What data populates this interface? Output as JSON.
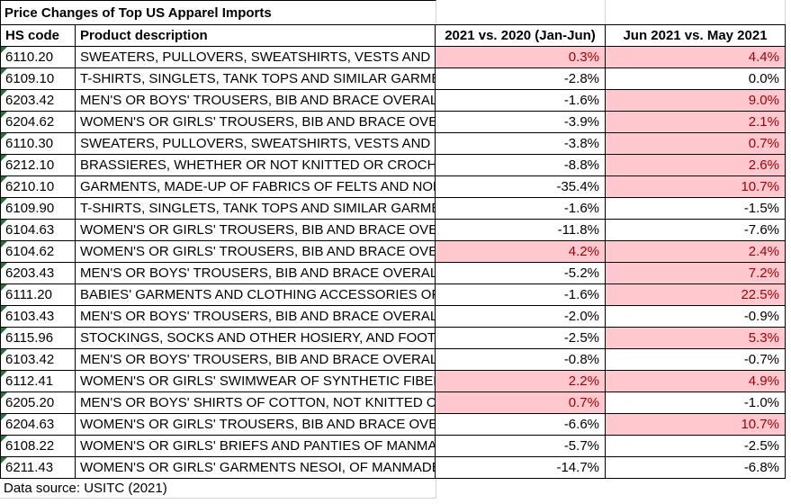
{
  "title": "Price Changes of Top US Apparel Imports",
  "footer": "Data source: USITC (2021)",
  "colors": {
    "highlight_fill": "#FFC7CE",
    "highlight_text": "#9C0006",
    "error_indicator_green": "#1E7145",
    "border": "#000000",
    "gridline": "#D4D4D4"
  },
  "table": {
    "columns": [
      "HS code",
      "Product description",
      "2021 vs. 2020 (Jan-Jun)",
      "Jun 2021 vs. May 2021"
    ],
    "rows": [
      {
        "hs": "6110.20",
        "desc": "SWEATERS, PULLOVERS, SWEATSHIRTS, VESTS AND SIMILAR ARTICLES",
        "yoy": "0.3%",
        "yoy_hl": true,
        "mom": "4.4%",
        "mom_hl": true
      },
      {
        "hs": "6109.10",
        "desc": "T-SHIRTS, SINGLETS, TANK TOPS AND SIMILAR GARMENTS",
        "yoy": "-2.8%",
        "yoy_hl": false,
        "mom": "0.0%",
        "mom_hl": false
      },
      {
        "hs": "6203.42",
        "desc": "MEN'S OR BOYS' TROUSERS, BIB AND BRACE OVERALLS",
        "yoy": "-1.6%",
        "yoy_hl": false,
        "mom": "9.0%",
        "mom_hl": true
      },
      {
        "hs": "6204.62",
        "desc": "WOMEN'S OR GIRLS' TROUSERS, BIB AND BRACE OVERALLS",
        "yoy": "-3.9%",
        "yoy_hl": false,
        "mom": "2.1%",
        "mom_hl": true
      },
      {
        "hs": "6110.30",
        "desc": "SWEATERS, PULLOVERS, SWEATSHIRTS, VESTS AND SIMILAR ARTICLES",
        "yoy": "-3.8%",
        "yoy_hl": false,
        "mom": "0.7%",
        "mom_hl": true
      },
      {
        "hs": "6212.10",
        "desc": "BRASSIERES, WHETHER OR NOT KNITTED OR CROCHETED",
        "yoy": "-8.8%",
        "yoy_hl": false,
        "mom": "2.6%",
        "mom_hl": true
      },
      {
        "hs": "6210.10",
        "desc": "GARMENTS, MADE-UP OF FABRICS OF FELTS AND NONWOVENS",
        "yoy": "-35.4%",
        "yoy_hl": false,
        "mom": "10.7%",
        "mom_hl": true
      },
      {
        "hs": "6109.90",
        "desc": "T-SHIRTS, SINGLETS, TANK TOPS AND SIMILAR GARMENTS",
        "yoy": "-1.6%",
        "yoy_hl": false,
        "mom": "-1.5%",
        "mom_hl": false
      },
      {
        "hs": "6104.63",
        "desc": "WOMEN'S OR GIRLS' TROUSERS, BIB AND BRACE OVERALLS",
        "yoy": "-11.8%",
        "yoy_hl": false,
        "mom": "-7.6%",
        "mom_hl": false
      },
      {
        "hs": "6104.62",
        "desc": "WOMEN'S OR GIRLS' TROUSERS, BIB AND BRACE OVERALLS",
        "yoy": "4.2%",
        "yoy_hl": true,
        "mom": "2.4%",
        "mom_hl": true
      },
      {
        "hs": "6203.43",
        "desc": "MEN'S OR BOYS' TROUSERS, BIB AND BRACE OVERALLS",
        "yoy": "-5.2%",
        "yoy_hl": false,
        "mom": "7.2%",
        "mom_hl": true
      },
      {
        "hs": "6111.20",
        "desc": "BABIES' GARMENTS AND CLOTHING ACCESSORIES OF COTTON",
        "yoy": "-1.6%",
        "yoy_hl": false,
        "mom": "22.5%",
        "mom_hl": true
      },
      {
        "hs": "6103.43",
        "desc": "MEN'S OR BOYS' TROUSERS, BIB AND BRACE OVERALLS",
        "yoy": "-2.0%",
        "yoy_hl": false,
        "mom": "-0.9%",
        "mom_hl": false
      },
      {
        "hs": "6115.96",
        "desc": "STOCKINGS, SOCKS AND OTHER HOSIERY, AND FOOTWEAR",
        "yoy": "-2.5%",
        "yoy_hl": false,
        "mom": "5.3%",
        "mom_hl": true
      },
      {
        "hs": "6103.42",
        "desc": "MEN'S OR BOYS' TROUSERS, BIB AND BRACE OVERALLS",
        "yoy": "-0.8%",
        "yoy_hl": false,
        "mom": "-0.7%",
        "mom_hl": false
      },
      {
        "hs": "6112.41",
        "desc": "WOMEN'S OR GIRLS' SWIMWEAR OF SYNTHETIC FIBERS",
        "yoy": "2.2%",
        "yoy_hl": true,
        "mom": "4.9%",
        "mom_hl": true
      },
      {
        "hs": "6205.20",
        "desc": "MEN'S OR BOYS' SHIRTS OF COTTON, NOT KNITTED OR CROCHETED",
        "yoy": "0.7%",
        "yoy_hl": true,
        "mom": "-1.0%",
        "mom_hl": false
      },
      {
        "hs": "6204.63",
        "desc": "WOMEN'S OR GIRLS' TROUSERS, BIB AND BRACE OVERALLS",
        "yoy": "-6.6%",
        "yoy_hl": false,
        "mom": "10.7%",
        "mom_hl": true
      },
      {
        "hs": "6108.22",
        "desc": "WOMEN'S OR GIRLS' BRIEFS AND PANTIES OF MANMADE FIBERS",
        "yoy": "-5.7%",
        "yoy_hl": false,
        "mom": "-2.5%",
        "mom_hl": false
      },
      {
        "hs": "6211.43",
        "desc": "WOMEN'S OR GIRLS' GARMENTS NESOI, OF MANMADE FIBERS",
        "yoy": "-14.7%",
        "yoy_hl": false,
        "mom": "-6.8%",
        "mom_hl": false
      }
    ]
  }
}
